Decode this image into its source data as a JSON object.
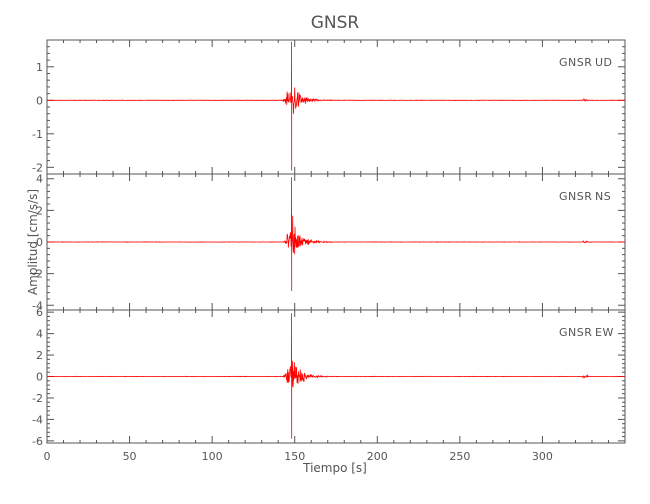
{
  "chart_data": {
    "type": "line",
    "title": "GNSR",
    "xlabel": "Tiempo [s]",
    "ylabel": "Amplitud [cm/s/s]",
    "xlim": [
      0,
      350
    ],
    "x_ticks": [
      0,
      50,
      100,
      150,
      200,
      250,
      300
    ],
    "x_tick_labels": [
      "0",
      "50",
      "100",
      "150",
      "200",
      "250",
      "300"
    ],
    "line_color": "#ff0000",
    "axis_color": "#555555",
    "grid": false,
    "legend": "none",
    "panels": [
      {
        "label_station": "GNSR",
        "label_component": "UD",
        "ylim": [
          -2.2,
          1.8
        ],
        "y_ticks": [
          1,
          0,
          -1,
          -2
        ],
        "y_tick_labels": [
          "1",
          "0",
          "-1",
          "-2"
        ],
        "event": {
          "onset_s": 143,
          "peak_time_s": 148,
          "peak_max": 1.75,
          "peak_min": -2.1,
          "secondary_time_s": 326,
          "secondary_amp": 0.05
        },
        "series": [
          {
            "x": [
              0,
              140,
              143,
              145,
              147,
              148,
              148.5,
              149,
              150,
              152,
              155,
              160,
              170,
              200,
              300,
              326,
              350
            ],
            "y": [
              0,
              0,
              0.4,
              -0.5,
              0.8,
              1.75,
              -2.1,
              1.2,
              -0.8,
              0.5,
              -0.3,
              0.15,
              0.05,
              0,
              0,
              0.05,
              0
            ]
          }
        ]
      },
      {
        "label_station": "GNSR",
        "label_component": "NS",
        "ylim": [
          -4.3,
          4.3
        ],
        "y_ticks": [
          4,
          2,
          0,
          -2,
          -4
        ],
        "y_tick_labels": [
          "4",
          "2",
          "0",
          "-2",
          "-4"
        ],
        "event": {
          "onset_s": 143,
          "peak_time_s": 148,
          "peak_max": 4.1,
          "peak_min": -3.1,
          "secondary_time_s": 326,
          "secondary_amp": 0.1
        },
        "series": [
          {
            "x": [
              0,
              140,
              143,
              145,
              147,
              148,
              148.5,
              149,
              150,
              152,
              155,
              160,
              170,
              200,
              300,
              326,
              350
            ],
            "y": [
              0,
              0,
              0.7,
              -1.0,
              1.8,
              4.1,
              -3.1,
              2.6,
              -1.9,
              1.2,
              -0.7,
              0.35,
              0.1,
              0,
              0,
              0.1,
              0
            ]
          }
        ]
      },
      {
        "label_station": "GNSR",
        "label_component": "EW",
        "ylim": [
          -6.2,
          6.2
        ],
        "y_ticks": [
          6,
          4,
          2,
          0,
          -2,
          -4,
          -6
        ],
        "y_tick_labels": [
          "6",
          "4",
          "2",
          "0",
          "-2",
          "-4",
          "-6"
        ],
        "event": {
          "onset_s": 143,
          "peak_time_s": 148,
          "peak_max": 5.9,
          "peak_min": -5.8,
          "secondary_time_s": 326,
          "secondary_amp": 0.15
        },
        "series": [
          {
            "x": [
              0,
              140,
              143,
              145,
              147,
              148,
              148.5,
              149,
              150,
              152,
              155,
              160,
              170,
              200,
              300,
              326,
              350
            ],
            "y": [
              0,
              0,
              1.0,
              -1.5,
              2.6,
              5.9,
              -5.8,
              3.8,
              -2.7,
              1.7,
              -1.0,
              0.5,
              0.15,
              0,
              0,
              0.15,
              0
            ]
          }
        ]
      }
    ]
  }
}
